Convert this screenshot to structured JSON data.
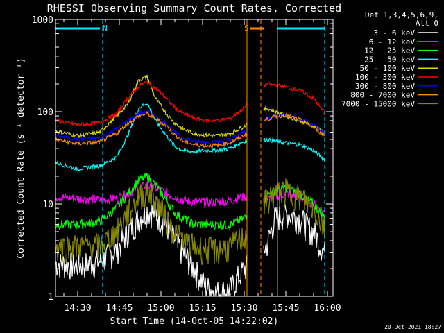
{
  "chart_data": {
    "type": "line",
    "title": "RHESSI Observing Summary Count Rates, Corrected",
    "xlabel": "Start Time (14-Oct-05 14:22:02)",
    "ylabel": "Corrected Count Rate (s⁻¹ detector⁻¹)",
    "y_scale": "log",
    "ylim": [
      1,
      1000
    ],
    "xlim": [
      "14:22",
      "16:02"
    ],
    "x_ticks": [
      "14:30",
      "14:45",
      "15:00",
      "15:15",
      "15:30",
      "15:45",
      "16:00"
    ],
    "y_ticks": [
      "1",
      "10",
      "100",
      "1000"
    ],
    "legend_header": [
      "Det 1,3,4,5,6,9,",
      "Att 0"
    ],
    "legend_position": "right-outside",
    "background": "#000000",
    "data_gap": [
      "15:31",
      "15:37"
    ],
    "event_markers": [
      {
        "label": "N",
        "color": "#00e5ff",
        "bar": [
          "14:22",
          "14:38"
        ],
        "lines": [
          "14:22",
          "14:39"
        ]
      },
      {
        "label": "S",
        "color": "#ff8c00",
        "bar": [
          "15:32",
          "15:37"
        ],
        "lines": [
          "15:31",
          "15:36"
        ]
      },
      {
        "label": "",
        "color": "#00e5ff",
        "bar": [
          "15:42",
          "15:59"
        ],
        "lines": [
          "15:42",
          "15:59"
        ]
      }
    ],
    "series": [
      {
        "name": "3 - 6 keV",
        "color": "#ffffff",
        "x": [
          "14:22",
          "14:30",
          "14:38",
          "14:44",
          "14:48",
          "14:52",
          "14:55",
          "14:58",
          "15:02",
          "15:05",
          "15:08",
          "15:12",
          "15:16",
          "15:20",
          "15:25",
          "15:30",
          "15:38",
          "15:41",
          "15:45",
          "15:50",
          "15:55",
          "15:59"
        ],
        "y": [
          2.3,
          2.2,
          2.4,
          3.2,
          5,
          7,
          8.5,
          8,
          6,
          4,
          3,
          2,
          1.3,
          1.1,
          1.2,
          2,
          3.5,
          7,
          8,
          7,
          5,
          3
        ]
      },
      {
        "name": "6 - 12 keV",
        "color": "#ff00ff",
        "x": [
          "14:22",
          "14:30",
          "14:38",
          "14:44",
          "14:48",
          "14:52",
          "14:55",
          "14:58",
          "15:02",
          "15:05",
          "15:08",
          "15:12",
          "15:16",
          "15:20",
          "15:25",
          "15:30",
          "15:38",
          "15:41",
          "15:45",
          "15:50",
          "15:55",
          "15:59"
        ],
        "y": [
          12,
          11.5,
          11,
          11.5,
          13,
          15,
          16,
          15,
          13,
          12,
          11,
          10.5,
          10.5,
          10.5,
          11,
          12,
          11,
          12,
          13,
          12,
          10,
          8
        ]
      },
      {
        "name": "12 - 25 keV",
        "color": "#00ff00",
        "x": [
          "14:22",
          "14:30",
          "14:38",
          "14:44",
          "14:48",
          "14:52",
          "14:55",
          "14:58",
          "15:02",
          "15:05",
          "15:08",
          "15:12",
          "15:16",
          "15:20",
          "15:25",
          "15:30",
          "15:38",
          "15:41",
          "15:45",
          "15:50",
          "15:55",
          "15:59"
        ],
        "y": [
          6,
          6,
          6.5,
          9,
          13,
          18,
          20,
          16,
          11,
          8,
          7,
          6,
          6,
          6,
          6,
          7,
          12,
          14,
          15,
          13,
          10,
          7
        ]
      },
      {
        "name": "25 - 50 keV",
        "color": "#00ffff",
        "x": [
          "14:22",
          "14:30",
          "14:38",
          "14:44",
          "14:48",
          "14:52",
          "14:55",
          "14:58",
          "15:02",
          "15:05",
          "15:08",
          "15:12",
          "15:16",
          "15:20",
          "15:25",
          "15:30",
          "15:38",
          "15:41",
          "15:45",
          "15:50",
          "15:55",
          "15:59"
        ],
        "y": [
          28,
          24,
          26,
          32,
          55,
          110,
          125,
          80,
          55,
          42,
          38,
          37,
          38,
          38,
          40,
          48,
          50,
          48,
          46,
          44,
          38,
          30
        ]
      },
      {
        "name": "50 - 100 keV",
        "color": "#dddd00",
        "x": [
          "14:22",
          "14:30",
          "14:38",
          "14:44",
          "14:48",
          "14:52",
          "14:55",
          "14:58",
          "15:02",
          "15:05",
          "15:08",
          "15:12",
          "15:16",
          "15:20",
          "15:25",
          "15:30",
          "15:38",
          "15:41",
          "15:45",
          "15:50",
          "15:55",
          "15:59"
        ],
        "y": [
          62,
          55,
          60,
          90,
          120,
          220,
          240,
          140,
          95,
          75,
          65,
          58,
          56,
          55,
          58,
          70,
          110,
          100,
          90,
          80,
          70,
          60
        ]
      },
      {
        "name": "100 - 300 keV",
        "color": "#ff0000",
        "x": [
          "14:22",
          "14:30",
          "14:38",
          "14:44",
          "14:48",
          "14:52",
          "14:55",
          "14:58",
          "15:02",
          "15:05",
          "15:08",
          "15:12",
          "15:16",
          "15:20",
          "15:25",
          "15:30",
          "15:38",
          "15:41",
          "15:45",
          "15:50",
          "15:55",
          "15:59"
        ],
        "y": [
          80,
          72,
          76,
          95,
          140,
          190,
          210,
          180,
          140,
          110,
          95,
          85,
          80,
          80,
          85,
          110,
          200,
          195,
          185,
          170,
          140,
          95
        ]
      },
      {
        "name": "300 - 800 keV",
        "color": "#0000ff",
        "x": [
          "14:22",
          "14:30",
          "14:38",
          "14:44",
          "14:48",
          "14:52",
          "14:55",
          "14:58",
          "15:02",
          "15:05",
          "15:08",
          "15:12",
          "15:16",
          "15:20",
          "15:25",
          "15:30",
          "15:38",
          "15:41",
          "15:45",
          "15:50",
          "15:55",
          "15:59"
        ],
        "y": [
          55,
          50,
          52,
          65,
          80,
          95,
          100,
          90,
          75,
          60,
          52,
          48,
          47,
          47,
          50,
          62,
          85,
          90,
          95,
          85,
          72,
          58
        ]
      },
      {
        "name": "800 - 7000 keV",
        "color": "#ff8800",
        "x": [
          "14:22",
          "14:30",
          "14:38",
          "14:44",
          "14:48",
          "14:52",
          "14:55",
          "14:58",
          "15:02",
          "15:05",
          "15:08",
          "15:12",
          "15:16",
          "15:20",
          "15:25",
          "15:30",
          "15:38",
          "15:41",
          "15:45",
          "15:50",
          "15:55",
          "15:59"
        ],
        "y": [
          50,
          45,
          47,
          58,
          75,
          90,
          95,
          85,
          70,
          56,
          48,
          44,
          43,
          43,
          46,
          56,
          82,
          88,
          92,
          82,
          68,
          55
        ]
      },
      {
        "name": "7000 - 15000 keV",
        "color": "#888800",
        "x": [
          "14:22",
          "14:30",
          "14:38",
          "14:44",
          "14:48",
          "14:52",
          "14:55",
          "14:58",
          "15:02",
          "15:05",
          "15:08",
          "15:12",
          "15:16",
          "15:20",
          "15:25",
          "15:30",
          "15:38",
          "15:41",
          "15:45",
          "15:50",
          "15:55",
          "15:59"
        ],
        "y": [
          3.5,
          3.5,
          3.6,
          5,
          8,
          12,
          14,
          11,
          7,
          5,
          4,
          3.5,
          3.3,
          3.2,
          3.5,
          4.5,
          11,
          13,
          14,
          12,
          9,
          5.5
        ]
      }
    ]
  },
  "footer": {
    "timestamp": "20-Oct-2021 18:27"
  }
}
